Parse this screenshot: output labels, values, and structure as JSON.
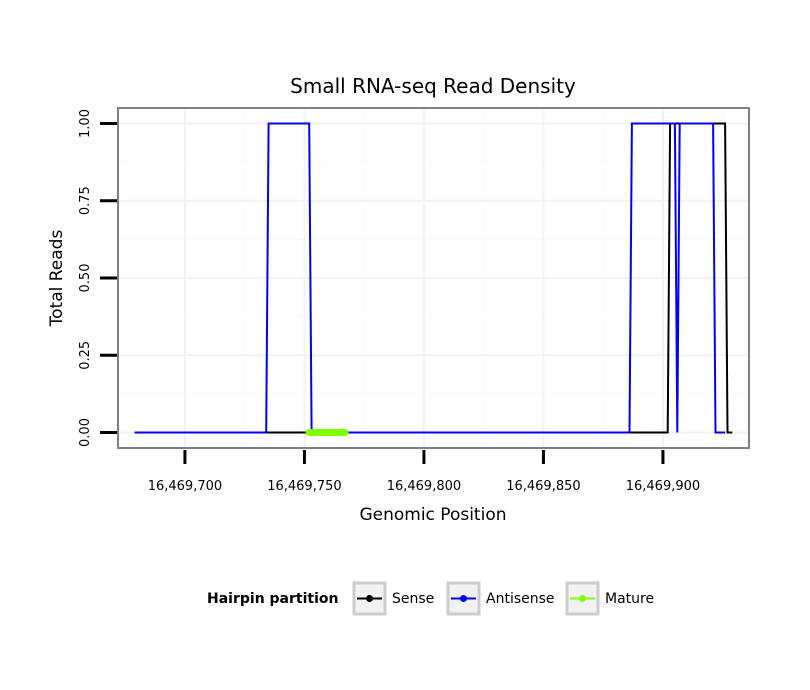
{
  "chart_data": {
    "type": "line",
    "title": "Small RNA-seq Read Density",
    "xlabel": "Genomic Position",
    "ylabel": "Total Reads",
    "xlim": [
      16469672,
      16469936
    ],
    "ylim": [
      -0.05,
      1.05
    ],
    "x_ticks": [
      16469700,
      16469750,
      16469800,
      16469850,
      16469900
    ],
    "x_tick_labels": [
      "16,469,700",
      "16,469,750",
      "16,469,800",
      "16,469,850",
      "16,469,900"
    ],
    "y_ticks": [
      0,
      0.25,
      0.5,
      0.75,
      1
    ],
    "y_tick_labels": [
      "0.00",
      "0.25",
      "0.50",
      "0.75",
      "1.00"
    ],
    "grid": true,
    "legend": {
      "title": "Hairpin partition",
      "position": "bottom"
    },
    "series": [
      {
        "name": "Sense",
        "color": "#000000",
        "x": [
          16469679,
          16469902,
          16469903,
          16469926,
          16469927,
          16469929
        ],
        "y": [
          0,
          0,
          1,
          1,
          0,
          0
        ]
      },
      {
        "name": "Antisense",
        "color": "#0000ff",
        "x": [
          16469679,
          16469734,
          16469735,
          16469752,
          16469753,
          16469886,
          16469887,
          16469905,
          16469906,
          16469907,
          16469921,
          16469922,
          16469926
        ],
        "y": [
          0,
          0,
          1,
          1,
          0,
          0,
          1,
          1,
          0,
          1,
          1,
          0,
          0
        ]
      },
      {
        "name": "Mature",
        "color": "#7fff00",
        "x": [
          16469752,
          16469767
        ],
        "y": [
          0,
          0
        ]
      }
    ]
  }
}
